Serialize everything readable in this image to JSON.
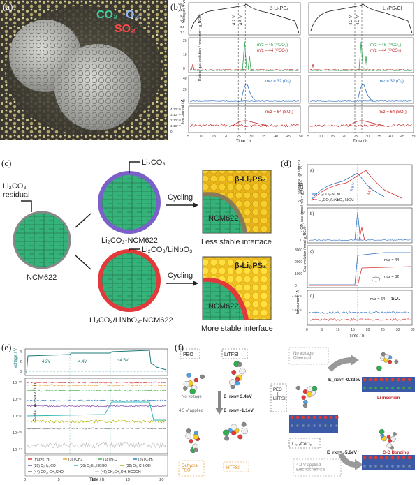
{
  "panel_labels": {
    "a": "(a)",
    "b": "(b)",
    "c": "(c)",
    "d": "(d)",
    "e": "(e)",
    "f": "(f)"
  },
  "panel_a": {
    "co2": "CO₂",
    "o2": "O₂",
    "so2": "SO₂",
    "colors": {
      "co2": "#3fd3a0",
      "o2": "#8fb5ff",
      "so2": "#ff4a4a"
    }
  },
  "panel_b": {
    "left_title": "β-Li₃PS₄",
    "right_title": "Li₆PS₅Cl",
    "ylabels": [
      "Voltage / V vs Li⁺/Li",
      "Rate of gas evolution / nmol min⁻¹ g_NCM⁻¹",
      "Ion current / A"
    ],
    "xlabel": "Time / h",
    "voltage_ticks": [
      "5.1",
      "4.9",
      "4.7",
      "4.5",
      "4.3",
      "4.1",
      "3.9",
      "3.7",
      "3.5",
      "3.3",
      "3.1"
    ],
    "annot_left": [
      "4.2 V",
      "4.5 V"
    ],
    "annot_right": [
      "4.2 V",
      "4.2 V"
    ],
    "legend_co2": [
      "m/z = 45 (¹³CO₂)",
      "m/z = 44 (¹²CO₂)"
    ],
    "legend_o2": "m/z = 32 (O₂)",
    "legend_so2": "m/z = 64 (SO₂)",
    "co2_ticks": [
      "20",
      "10",
      "0"
    ],
    "o2_ticks": [
      "40",
      "20",
      "0"
    ],
    "ion_ticks": [
      "4·10⁻¹⁴",
      "3·10⁻¹⁴",
      "2·10⁻¹⁴",
      "1·10⁻¹⁴",
      "0"
    ],
    "xticks": [
      "5",
      "10",
      "15",
      "20",
      "25",
      "30",
      "35",
      "40",
      "45",
      "50"
    ]
  },
  "panel_c": {
    "li2co3": "Li₂CO₃",
    "residual": "Li₂CO₃\nresidual",
    "ncm": "NCM622",
    "li2co3_lnbo": "Li₂CO₃/LiNbO₃",
    "coated1": "Li₂CO₃-NCM622",
    "coated2": "Li₂CO₃/LiNbO₃-NCM622",
    "cycling": "Cycling",
    "electrolyte": "β-Li₃PS₄",
    "less": "Less stable interface",
    "more": "More stable interface"
  },
  "panel_d": {
    "ylabels": [
      "Voltage / V vs Li⁺/Li",
      "¹²CO₂ rate / nmol min⁻¹ g_NCM⁻¹",
      "Gas evolution / nmol g_NCM⁻¹",
      "Ion current / A"
    ],
    "sub": [
      "a)",
      "b)",
      "c)",
      "d)"
    ],
    "legend": [
      "Li₂CO₃-NCM",
      "Li₂CO₃/LiNbO₃-NCM"
    ],
    "v_annot": [
      "3.6 V",
      "3.6 V"
    ],
    "mz44": "m/z = 44",
    "mz32": "m/z = 32",
    "mz64": "m/z = 64",
    "so2": "SO₂",
    "xlabel": "Time / h",
    "xticks": [
      "0",
      "5",
      "10",
      "15",
      "20",
      "25",
      "30",
      "35"
    ],
    "v_ticks": [
      "4.0",
      "3.5",
      "3.0",
      "2.5",
      "2.0"
    ],
    "c_ticks": [
      "3000",
      "2000",
      "1000",
      "0"
    ],
    "b_ticks": [
      "10",
      "5",
      "0"
    ],
    "d_ticks": [
      "4·10⁻¹⁴",
      "2·10⁻¹⁴"
    ]
  },
  "panel_e": {
    "ylabel_top": "Voltage / V",
    "ylabel_main": "Partial pressure / torr",
    "xlabel": "Time / h",
    "volt_labels": [
      "4.2V",
      "4.4V",
      "~4.5V"
    ],
    "v_ticks": [
      "4",
      "2",
      "0"
    ],
    "p_ticks": [
      "10⁻¹⁰",
      "10⁻¹¹",
      "10⁻¹²",
      "10⁻¹³",
      "10⁻¹⁴"
    ],
    "xticks": [
      "0",
      "5",
      "10",
      "15",
      "20"
    ],
    "legend": [
      [
        "(m/z=2) H₂",
        "(16) CH₄",
        "(18) H₂O",
        "(26) C₂H₂"
      ],
      [
        "(28) C₂H₄, CO",
        "(30) C₂H₆, HCHO",
        "(32) O₂, CH₃OH"
      ],
      [
        "(44) CO₂, CH₃CHO",
        "(46) CH₃CH₂OH, HCOOH"
      ]
    ],
    "colors": [
      "#d6403a",
      "#e8a838",
      "#4caf50",
      "#2a7ab8",
      "#7b4aa8",
      "#2fb5b5",
      "#b0b000",
      "#7a7a7a",
      "#c0c0c0"
    ]
  },
  "panel_f": {
    "peo": "PEO",
    "litfsi": "LiTFSI",
    "no_voltage": "No voltage",
    "applied45": "4.5 V applied",
    "erxn1": "E_rxn= 3.4eV",
    "erxn2": "E_rxn= -1.1eV",
    "dehydra": "Dehydra\nPEO",
    "htfsi": "HTFSI",
    "nov_chem": "No voltage\nChemical",
    "peo_litfsi": "PEO\n|\nLiTFSI",
    "erxn3": "E_rxn= -0.32eV",
    "erxn4": "E_rxn= -5.6eV",
    "licoo2": "Li₀.₅CoO₂",
    "applied42": "4.2 V applied\nElectrochemical",
    "li_insertion": "Li insertion",
    "co_bonding": "C-O Bonding"
  }
}
